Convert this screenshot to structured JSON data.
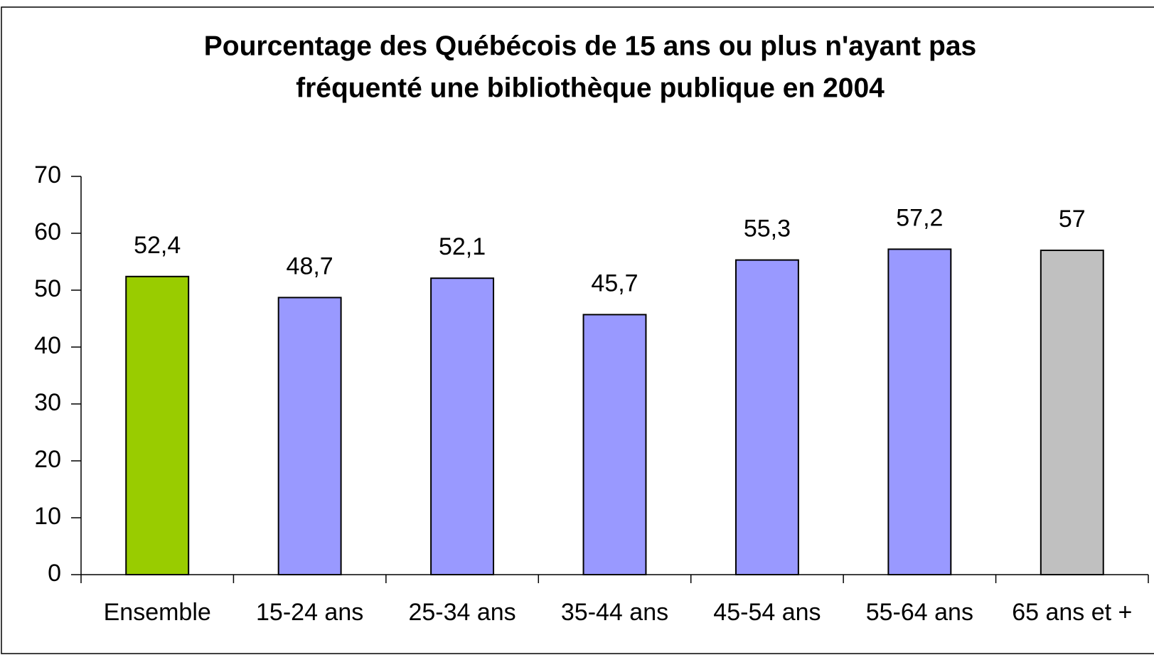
{
  "chart_data": {
    "type": "bar",
    "title": [
      "Pourcentage des Québécois de 15 ans ou plus n'ayant pas",
      "fréquenté une bibliothèque publique en 2004"
    ],
    "categories": [
      "Ensemble",
      "15-24 ans",
      "25-34 ans",
      "35-44 ans",
      "45-54 ans",
      "55-64 ans",
      "65 ans et +"
    ],
    "values": [
      52.4,
      48.7,
      52.1,
      45.7,
      55.3,
      57.2,
      57
    ],
    "value_labels": [
      "52,4",
      "48,7",
      "52,1",
      "45,7",
      "55,3",
      "57,2",
      "57"
    ],
    "colors": [
      "#99cc00",
      "#9999ff",
      "#9999ff",
      "#9999ff",
      "#9999ff",
      "#9999ff",
      "#c0c0c0"
    ],
    "ylim": [
      0,
      70
    ],
    "yticks": [
      0,
      10,
      20,
      30,
      40,
      50,
      60,
      70
    ],
    "grid": false
  }
}
